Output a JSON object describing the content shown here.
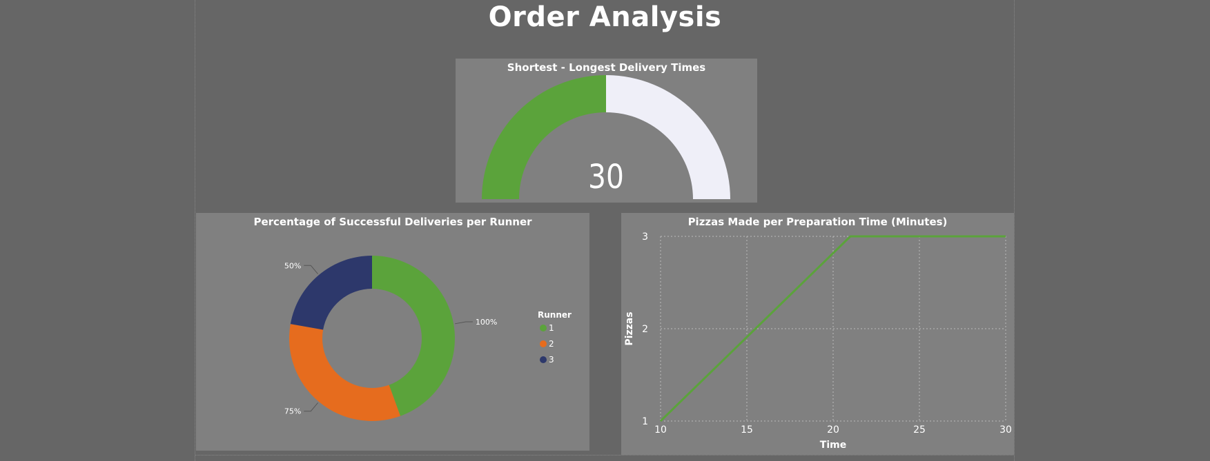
{
  "page": {
    "title": "Order Analysis"
  },
  "colors": {
    "background": "#666666",
    "panel": "#808080",
    "runner1": "#5BA33B",
    "runner2": "#E66C1E",
    "runner3": "#2D386B",
    "gauge_fill": "#5BA33B",
    "gauge_track": "#EFEFF8",
    "line": "#5BA33B"
  },
  "chart_data": [
    {
      "type": "gauge",
      "title": "Shortest - Longest Delivery Times",
      "value": 30,
      "value_label": "30",
      "fill_fraction": 0.5
    },
    {
      "type": "pie",
      "title": "Percentage of Successful Deliveries per Runner",
      "legend_title": "Runner",
      "legend_position": "right",
      "slices": [
        {
          "name": "1",
          "value": 100,
          "label": "100%",
          "color": "#5BA33B"
        },
        {
          "name": "2",
          "value": 75,
          "label": "75%",
          "color": "#E66C1E"
        },
        {
          "name": "3",
          "value": 50,
          "label": "50%",
          "color": "#2D386B"
        }
      ]
    },
    {
      "type": "line",
      "title": "Pizzas Made per Preparation Time (Minutes)",
      "xlabel": "Time",
      "ylabel": "Pizzas",
      "xlim": [
        10,
        30
      ],
      "ylim": [
        1,
        3
      ],
      "x_ticks": [
        10,
        15,
        20,
        25,
        30
      ],
      "y_ticks": [
        1,
        2,
        3
      ],
      "grid": true,
      "series": [
        {
          "x": [
            10,
            21,
            30
          ],
          "y": [
            1,
            3,
            3
          ]
        }
      ]
    }
  ]
}
